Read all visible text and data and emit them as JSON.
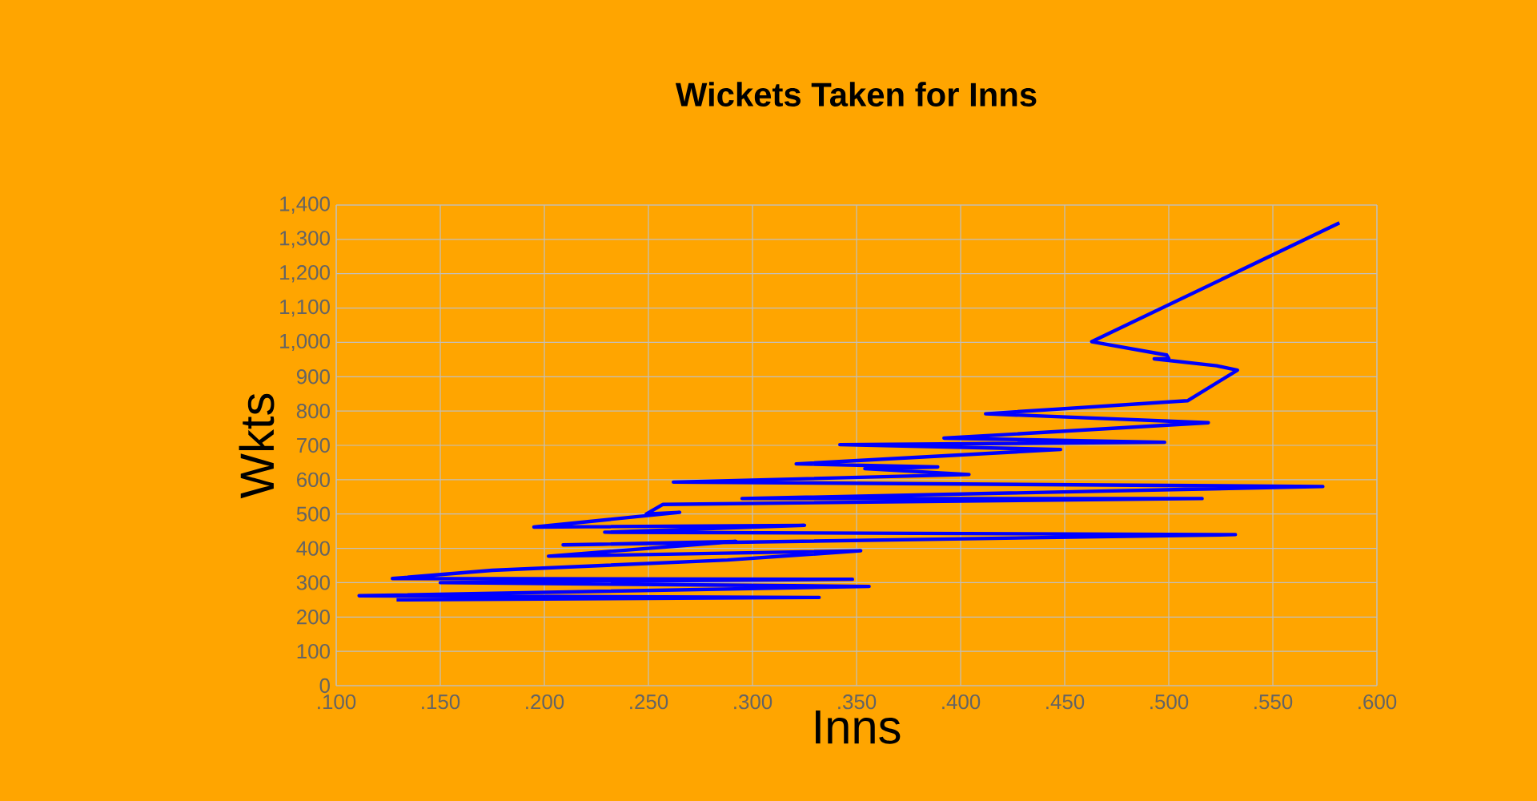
{
  "chart_data": {
    "type": "line",
    "title": "Wickets Taken for Inns",
    "xlabel": "Inns",
    "ylabel": "Wkts",
    "x": [
      0.582,
      0.463,
      0.499,
      0.5,
      0.493,
      0.523,
      0.533,
      0.509,
      0.412,
      0.519,
      0.392,
      0.498,
      0.342,
      0.448,
      0.321,
      0.389,
      0.354,
      0.404,
      0.262,
      0.574,
      0.295,
      0.516,
      0.257,
      0.249,
      0.265,
      0.195,
      0.325,
      0.229,
      0.532,
      0.209,
      0.292,
      0.202,
      0.352,
      0.288,
      0.175,
      0.127,
      0.348,
      0.15,
      0.356,
      0.111,
      0.332,
      0.129
    ],
    "series": [
      {
        "color": "#0000ff",
        "values": [
          1348,
          1002,
          963,
          953,
          952,
          932,
          919,
          830,
          792,
          766,
          721,
          709,
          702,
          688,
          646,
          637,
          632,
          615,
          593,
          580,
          545,
          545,
          528,
          500,
          505,
          462,
          467,
          447,
          440,
          410,
          420,
          377,
          393,
          366,
          336,
          312,
          310,
          300,
          289,
          262,
          257,
          250
        ]
      }
    ],
    "xlim": [
      0.1,
      0.6
    ],
    "ylim": [
      0,
      1400
    ],
    "xticks": [
      {
        "value": 0.1,
        "label": ".100"
      },
      {
        "value": 0.15,
        "label": ".150"
      },
      {
        "value": 0.2,
        "label": ".200"
      },
      {
        "value": 0.25,
        "label": ".250"
      },
      {
        "value": 0.3,
        "label": ".300"
      },
      {
        "value": 0.35,
        "label": ".350"
      },
      {
        "value": 0.4,
        "label": ".400"
      },
      {
        "value": 0.45,
        "label": ".450"
      },
      {
        "value": 0.5,
        "label": ".500"
      },
      {
        "value": 0.55,
        "label": ".550"
      },
      {
        "value": 0.6,
        "label": ".600"
      }
    ],
    "yticks": [
      0,
      100,
      200,
      300,
      400,
      500,
      600,
      700,
      800,
      900,
      {
        "value": 1000,
        "label": "1,000"
      },
      {
        "value": 1100,
        "label": "1,100"
      },
      {
        "value": 1200,
        "label": "1,200"
      },
      {
        "value": 1300,
        "label": "1,300"
      },
      {
        "value": 1400,
        "label": "1,400"
      }
    ],
    "grid": true,
    "marker": "none",
    "line_style": "solid"
  }
}
